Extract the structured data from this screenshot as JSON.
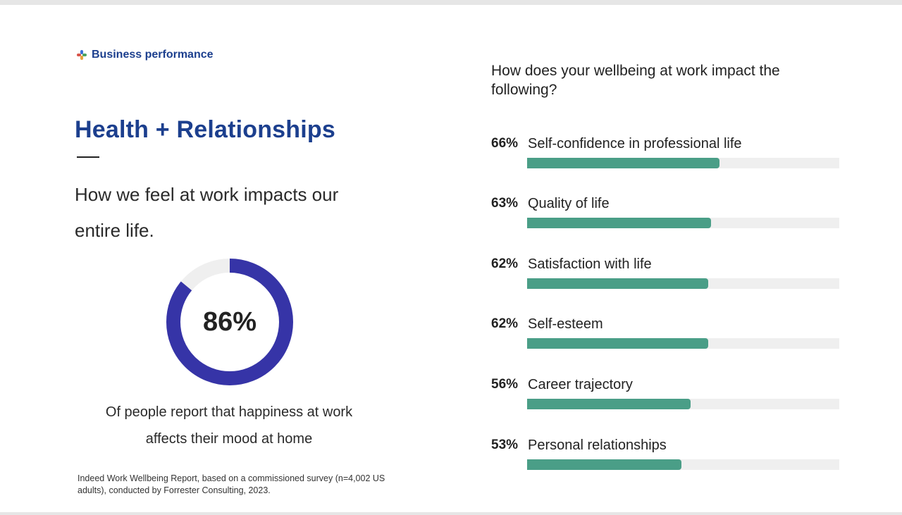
{
  "header": {
    "brand_label": "Business performance",
    "brand_icon": "colorful-cross-icon"
  },
  "left": {
    "title": "Health + Relationships",
    "lead": "How we feel at work impacts our entire life.",
    "stat": {
      "value_label": "86%",
      "value": 86,
      "caption": "Of people report that happiness at work affects their mood at home"
    },
    "footnote": "Indeed Work Wellbeing Report, based on a commissioned survey (n=4,002 US adults), conducted by Forrester Consulting, 2023."
  },
  "colors": {
    "brand_blue": "#1c3f8e",
    "donut_fill": "#3634a7",
    "donut_track": "#efefef",
    "bar_fill": "#4a9e87",
    "bar_track": "#efefef"
  },
  "chart_data": [
    {
      "type": "pie",
      "title": "",
      "values": [
        86,
        14
      ],
      "value_label": "86%"
    },
    {
      "type": "bar",
      "orientation": "horizontal",
      "title": "How does your wellbeing at work impact the following?",
      "categories": [
        "Self-confidence in professional life",
        "Quality of life",
        "Satisfaction with life",
        "Self-esteem",
        "Career trajectory",
        "Personal relationships"
      ],
      "values": [
        66,
        63,
        62,
        62,
        56,
        53
      ],
      "value_labels": [
        "66%",
        "63%",
        "62%",
        "62%",
        "56%",
        "53%"
      ],
      "xlim": [
        0,
        100
      ],
      "grid": false
    }
  ]
}
